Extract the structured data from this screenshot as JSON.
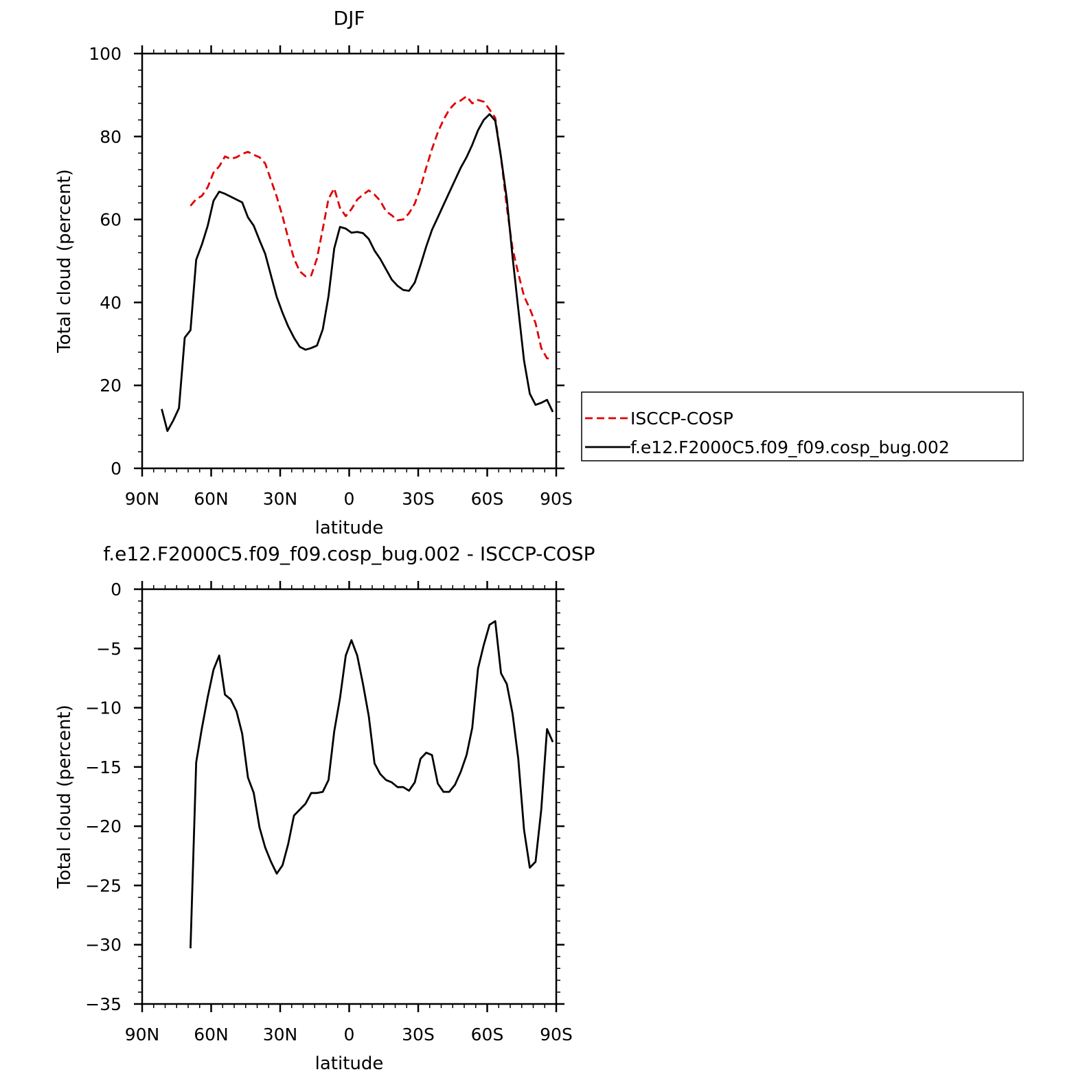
{
  "chart_data": [
    {
      "type": "line",
      "title": "DJF",
      "xlabel": "latitude",
      "ylabel": "Total cloud (percent)",
      "xlim": [
        90,
        -90
      ],
      "ylim": [
        0,
        100
      ],
      "xticks": [
        90,
        60,
        30,
        0,
        -30,
        -60,
        -90
      ],
      "xtick_labels": [
        "90N",
        "60N",
        "30N",
        "0",
        "30S",
        "60S",
        "90S"
      ],
      "yticks": [
        0,
        20,
        40,
        60,
        80,
        100
      ],
      "ytick_labels": [
        "0",
        "20",
        "40",
        "60",
        "80",
        "100"
      ],
      "legend": "right, outside",
      "series": [
        {
          "name": "ISCCP-COSP",
          "color": "#e00000",
          "style": "dashed",
          "x": [
            69,
            66.5,
            64,
            61.5,
            59,
            56.5,
            54,
            51.5,
            49,
            46.5,
            44,
            41.5,
            39,
            36.5,
            34,
            31.5,
            29,
            26.5,
            24,
            21.5,
            19,
            16.5,
            14,
            11.5,
            9,
            6.5,
            4,
            1.5,
            -1,
            -3.5,
            -6,
            -8.5,
            -11,
            -13.5,
            -16,
            -18.5,
            -21,
            -23.5,
            -26,
            -28.5,
            -31,
            -33.5,
            -36,
            -38.5,
            -41,
            -43.5,
            -46,
            -48.5,
            -51,
            -53.5,
            -56,
            -58.5,
            -61,
            -63.5,
            -66,
            -68.5,
            -71,
            -73.5,
            -76,
            -78.5,
            -81,
            -83.5,
            -86,
            -88.5
          ],
          "values": [
            63.3,
            64.9,
            65.7,
            67.8,
            71.3,
            72.8,
            75.2,
            74.6,
            75.0,
            75.8,
            76.3,
            75.6,
            75.0,
            73.5,
            69.5,
            65.5,
            60.8,
            55.5,
            50.6,
            47.5,
            46.3,
            46.5,
            50.6,
            57.7,
            65.0,
            67.5,
            62.8,
            60.8,
            62.5,
            64.8,
            66.0,
            67.0,
            66.0,
            64.5,
            62.0,
            61.0,
            59.8,
            60.0,
            61.5,
            63.8,
            67.7,
            72.5,
            77.0,
            81.0,
            84.0,
            86.5,
            88.0,
            88.7,
            89.7,
            88.0,
            88.8,
            88.4,
            86.5,
            84.5,
            75.0,
            63.0,
            53.0,
            47.0,
            41.5,
            38.5,
            35.0,
            29.0,
            26.5,
            26.5
          ]
        },
        {
          "name": "f.e12.F2000C5.f09_f09.cosp_bug.002",
          "color": "#000000",
          "style": "solid",
          "x": [
            89,
            86.5,
            84,
            81.5,
            79,
            76.5,
            74,
            71.5,
            69,
            66.5,
            64,
            61.5,
            59,
            56.5,
            54,
            51.5,
            49,
            46.5,
            44,
            41.5,
            39,
            36.5,
            34,
            31.5,
            29,
            26.5,
            24,
            21.5,
            19,
            16.5,
            14,
            11.5,
            9,
            6.5,
            4,
            1.5,
            -1,
            -3.5,
            -6,
            -8.5,
            -11,
            -13.5,
            -16,
            -18.5,
            -21,
            -23.5,
            -26,
            -28.5,
            -31,
            -33.5,
            -36,
            -38.5,
            -41,
            -43.5,
            -46,
            -48.5,
            -51,
            -53.5,
            -56,
            -58.5,
            -61,
            -63.5,
            -66,
            -68.5,
            -71,
            -73.5,
            -76,
            -78.5,
            -81,
            -83.5,
            -86,
            -88.5
          ],
          "values": [
            null,
            null,
            null,
            14.3,
            9.0,
            11.5,
            14.5,
            31.5,
            33.3,
            50.3,
            54.0,
            58.5,
            64.5,
            66.7,
            66.2,
            65.5,
            64.8,
            64.1,
            60.5,
            58.5,
            55.0,
            51.7,
            46.5,
            41.3,
            37.5,
            34.2,
            31.5,
            29.3,
            28.6,
            29.0,
            29.6,
            33.5,
            41.5,
            53.0,
            58.2,
            57.8,
            56.8,
            57.0,
            56.7,
            55.3,
            52.5,
            50.5,
            48.0,
            45.5,
            44.0,
            43.0,
            42.8,
            44.8,
            49.0,
            53.5,
            57.5,
            60.5,
            63.5,
            66.5,
            69.5,
            72.5,
            75.0,
            78.0,
            81.5,
            84.0,
            85.4,
            83.8,
            75.0,
            65.0,
            51.0,
            38.5,
            26.0,
            18.0,
            15.3,
            15.8,
            16.5,
            13.6
          ]
        }
      ]
    },
    {
      "type": "line",
      "title": "f.e12.F2000C5.f09_f09.cosp_bug.002 - ISCCP-COSP",
      "xlabel": "latitude",
      "ylabel": "Total cloud (percent)",
      "xlim": [
        90,
        -90
      ],
      "ylim": [
        -35,
        0
      ],
      "xticks": [
        90,
        60,
        30,
        0,
        -30,
        -60,
        -90
      ],
      "xtick_labels": [
        "90N",
        "60N",
        "30N",
        "0",
        "30S",
        "60S",
        "90S"
      ],
      "yticks": [
        0,
        -5,
        -10,
        -15,
        -20,
        -25,
        -30,
        -35
      ],
      "ytick_labels": [
        "0",
        "−5",
        "−10",
        "−15",
        "−20",
        "−25",
        "−30",
        "−35"
      ],
      "series": [
        {
          "color": "#000000",
          "style": "solid",
          "x": [
            69,
            66.5,
            64,
            61.5,
            59,
            56.5,
            54,
            51.5,
            49,
            46.5,
            44,
            41.5,
            39,
            36.5,
            34,
            31.5,
            29,
            26.5,
            24,
            21.5,
            19,
            16.5,
            14,
            11.5,
            9,
            6.5,
            4,
            1.5,
            -1,
            -3.5,
            -6,
            -8.5,
            -11,
            -13.5,
            -16,
            -18.5,
            -21,
            -23.5,
            -26,
            -28.5,
            -31,
            -33.5,
            -36,
            -38.5,
            -41,
            -43.5,
            -46,
            -48.5,
            -51,
            -53.5,
            -56,
            -58.5,
            -61,
            -63.5,
            -66,
            -68.5,
            -71,
            -73.5,
            -76,
            -78.5,
            -81,
            -83.5,
            -86,
            -88.5
          ],
          "values": [
            -30.3,
            -14.6,
            -11.7,
            -9.1,
            -6.8,
            -5.6,
            -8.9,
            -9.3,
            -10.3,
            -12.2,
            -15.9,
            -17.2,
            -20.1,
            -21.8,
            -23.0,
            -24.0,
            -23.3,
            -21.5,
            -19.1,
            -18.6,
            -18.1,
            -17.2,
            -17.2,
            -17.1,
            -16.1,
            -12.0,
            -9.2,
            -5.6,
            -4.3,
            -5.6,
            -8.0,
            -10.7,
            -14.7,
            -15.6,
            -16.1,
            -16.3,
            -16.7,
            -16.7,
            -17.0,
            -16.3,
            -14.3,
            -13.8,
            -14.0,
            -16.4,
            -17.1,
            -17.1,
            -16.5,
            -15.4,
            -14.0,
            -11.7,
            -6.7,
            -4.7,
            -3.0,
            -2.7,
            -7.1,
            -8.0,
            -10.5,
            -14.3,
            -20.3,
            -23.5,
            -23.0,
            -18.6,
            -11.8,
            -12.9
          ]
        }
      ]
    }
  ]
}
